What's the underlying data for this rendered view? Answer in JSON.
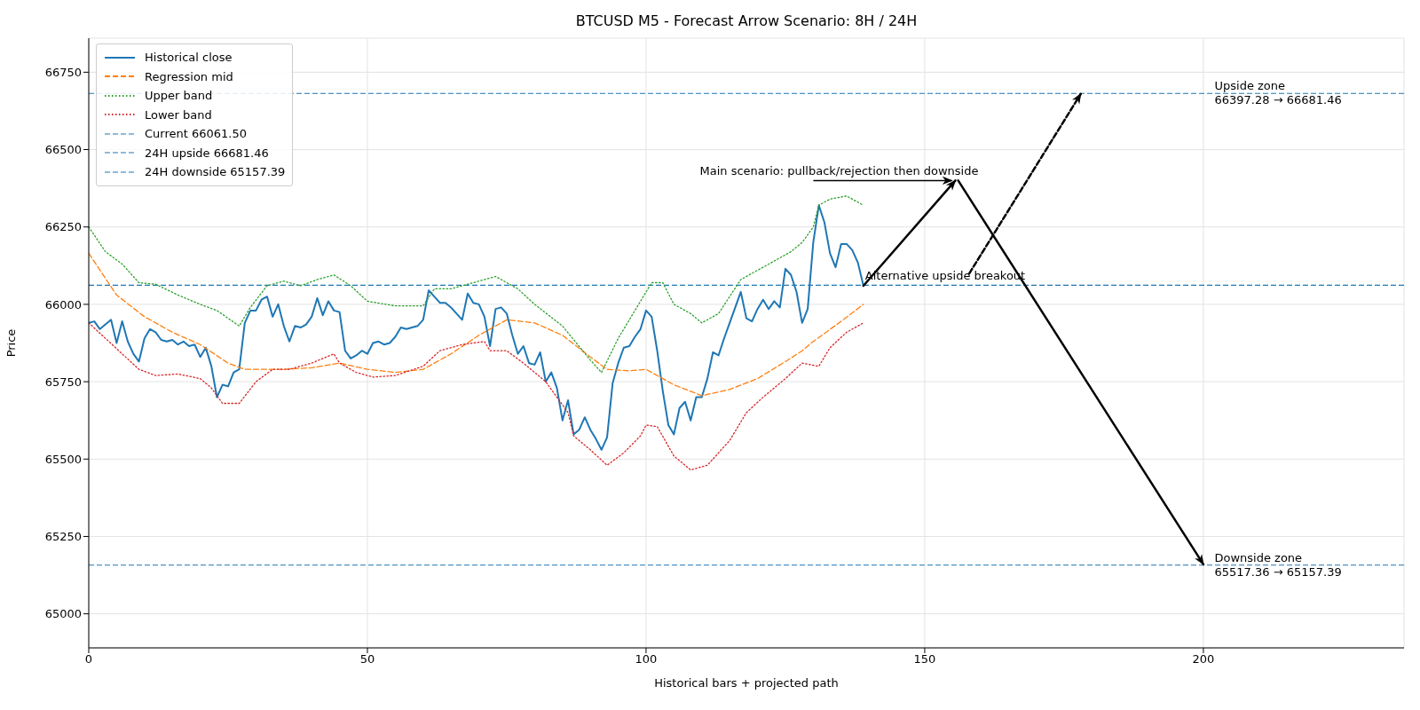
{
  "chart_data": {
    "type": "line",
    "title": "BTCUSD M5 - Forecast Arrow Scenario: 8H / 24H",
    "xlabel": "Historical bars + projected path",
    "ylabel": "Price",
    "x": [
      0,
      1,
      2,
      3,
      4,
      5,
      6,
      7,
      8,
      9,
      10,
      11,
      12,
      13,
      14,
      15,
      16,
      17,
      18,
      19,
      20,
      21,
      22,
      23,
      24,
      25,
      26,
      27,
      28,
      29,
      30,
      31,
      32,
      33,
      34,
      35,
      36,
      37,
      38,
      39,
      40,
      41,
      42,
      43,
      44,
      45,
      46,
      47,
      48,
      49,
      50,
      51,
      52,
      53,
      54,
      55,
      56,
      57,
      58,
      59,
      60,
      61,
      62,
      63,
      64,
      65,
      66,
      67,
      68,
      69,
      70,
      71,
      72,
      73,
      74,
      75,
      76,
      77,
      78,
      79,
      80,
      81,
      82,
      83,
      84,
      85,
      86,
      87,
      88,
      89,
      90,
      91,
      92,
      93,
      94,
      95,
      96,
      97,
      98,
      99,
      100,
      101,
      102,
      103,
      104,
      105,
      106,
      107,
      108,
      109,
      110,
      111,
      112,
      113,
      114,
      115,
      116,
      117,
      118,
      119,
      120,
      121,
      122,
      123,
      124,
      125,
      126,
      127,
      128,
      129,
      130,
      131,
      132,
      133,
      134,
      135,
      136,
      137,
      138,
      139
    ],
    "series": [
      {
        "name": "Historical close",
        "color": "#1f77b4",
        "line_style": "solid",
        "values": [
          65940,
          65945,
          65920,
          65935,
          65950,
          65875,
          65945,
          65880,
          65840,
          65815,
          65890,
          65920,
          65910,
          65885,
          65880,
          65885,
          65870,
          65880,
          65865,
          65870,
          65830,
          65860,
          65800,
          65700,
          65740,
          65735,
          65780,
          65790,
          65940,
          65980,
          65980,
          66015,
          66025,
          65960,
          66000,
          65930,
          65880,
          65930,
          65925,
          65935,
          65960,
          66020,
          65965,
          66010,
          65980,
          65975,
          65850,
          65825,
          65835,
          65850,
          65840,
          65875,
          65880,
          65870,
          65875,
          65895,
          65925,
          65920,
          65925,
          65930,
          65950,
          66045,
          66025,
          66005,
          66005,
          65990,
          65970,
          65950,
          66035,
          66005,
          66000,
          65960,
          65865,
          65985,
          65990,
          65970,
          65900,
          65840,
          65865,
          65810,
          65805,
          65845,
          65750,
          65780,
          65730,
          65625,
          65690,
          65580,
          65595,
          65635,
          65595,
          65565,
          65530,
          65570,
          65745,
          65810,
          65860,
          65865,
          65895,
          65920,
          65980,
          65960,
          65850,
          65720,
          65610,
          65580,
          65665,
          65685,
          65625,
          65700,
          65700,
          65760,
          65845,
          65835,
          65890,
          65940,
          65990,
          66040,
          65955,
          65945,
          65985,
          66015,
          65985,
          66010,
          65990,
          66115,
          66095,
          66040,
          65940,
          65985,
          66200,
          66320,
          66265,
          66165,
          66120,
          66195,
          66195,
          66175,
          66135,
          66060
        ]
      },
      {
        "name": "Regression mid",
        "color": "#ff7f0e",
        "line_style": "dashed",
        "x": [
          0,
          5,
          10,
          15,
          20,
          25,
          28,
          35,
          40,
          45,
          50,
          55,
          60,
          65,
          70,
          75,
          80,
          85,
          90,
          93,
          97,
          100,
          105,
          110,
          115,
          120,
          125,
          128,
          130,
          135,
          139
        ],
        "values": [
          66165,
          66030,
          65960,
          65910,
          65870,
          65810,
          65790,
          65790,
          65795,
          65810,
          65790,
          65780,
          65790,
          65840,
          65900,
          65950,
          65940,
          65900,
          65830,
          65790,
          65785,
          65790,
          65740,
          65705,
          65725,
          65760,
          65815,
          65850,
          65880,
          65945,
          66000
        ]
      },
      {
        "name": "Upper band",
        "color": "#2ca02c",
        "line_style": "dotted",
        "x": [
          0,
          3,
          6,
          9,
          12,
          16,
          20,
          23,
          27,
          29,
          32,
          35,
          38,
          41,
          44,
          47,
          50,
          55,
          60,
          62,
          65,
          70,
          73,
          77,
          80,
          85,
          90,
          92,
          95,
          98,
          101,
          103,
          105,
          108,
          110,
          113,
          117,
          120,
          123,
          126,
          128,
          130,
          131,
          133,
          136,
          139
        ],
        "values": [
          66250,
          66170,
          66130,
          66070,
          66065,
          66030,
          66000,
          65980,
          65930,
          65990,
          66060,
          66075,
          66060,
          66080,
          66095,
          66060,
          66010,
          65995,
          65995,
          66050,
          66050,
          66075,
          66090,
          66050,
          66000,
          65930,
          65820,
          65780,
          65890,
          65980,
          66070,
          66070,
          66000,
          65970,
          65940,
          65970,
          66080,
          66110,
          66140,
          66170,
          66200,
          66250,
          66320,
          66340,
          66350,
          66320
        ]
      },
      {
        "name": "Lower band",
        "color": "#d62728",
        "line_style": "dotted",
        "x": [
          0,
          3,
          6,
          9,
          12,
          16,
          20,
          22,
          24,
          27,
          30,
          33,
          36,
          40,
          44,
          45,
          48,
          51,
          55,
          60,
          63,
          67,
          71,
          72,
          75,
          78,
          82,
          86,
          87,
          90,
          93,
          96,
          99,
          100,
          102,
          105,
          108,
          111,
          115,
          118,
          121,
          125,
          128,
          131,
          133,
          136,
          139
        ],
        "values": [
          65940,
          65890,
          65840,
          65790,
          65770,
          65775,
          65760,
          65730,
          65680,
          65680,
          65750,
          65790,
          65790,
          65810,
          65840,
          65810,
          65780,
          65765,
          65770,
          65800,
          65850,
          65870,
          65880,
          65850,
          65850,
          65810,
          65750,
          65650,
          65575,
          65530,
          65480,
          65520,
          65575,
          65610,
          65605,
          65510,
          65465,
          65480,
          65560,
          65650,
          65700,
          65760,
          65810,
          65800,
          65860,
          65910,
          65940
        ]
      },
      {
        "color": "#000000",
        "line_style": "solid",
        "x": [
          139,
          155.5
        ],
        "values": [
          66060,
          66400
        ]
      },
      {
        "color": "#000000",
        "line_style": "solid",
        "x": [
          156,
          200
        ],
        "values": [
          66400,
          65160
        ]
      },
      {
        "color": "#000000",
        "line_style": "dashed",
        "x": [
          158,
          178
        ],
        "values": [
          66100,
          66680
        ]
      }
    ],
    "ref_lines": [
      {
        "axis": "y",
        "value": 66061.5,
        "label": "Current 66061.50",
        "color": "#1f77b4",
        "line_style": "dashed"
      },
      {
        "axis": "y",
        "value": 66681.46,
        "label": "24H upside 66681.46",
        "color": "#1f77b4",
        "line_style": "dashed"
      },
      {
        "axis": "y",
        "value": 65157.39,
        "label": "24H downside 65157.39",
        "color": "#1f77b4",
        "line_style": "dashed"
      }
    ],
    "annotations": [
      {
        "text": "Main scenario: pullback/rejection then downside",
        "x": 155.5,
        "y": 66400
      },
      {
        "text": "Alternative upside breakout",
        "x": 139,
        "y": 66061.5
      },
      {
        "text": "Upside zone\n66397.28 → 66681.46",
        "x": 202,
        "y": 66681.46
      },
      {
        "text": "Downside zone\n65517.36 → 65157.39",
        "x": 202,
        "y": 65157.39
      }
    ],
    "xlim": [
      0,
      236
    ],
    "xticks": [
      0,
      50,
      100,
      150,
      200
    ],
    "ylim": [
      64890,
      66860
    ],
    "yticks": [
      65000,
      65250,
      65500,
      65750,
      66000,
      66250,
      66500,
      66750
    ],
    "grid": true,
    "legend": "top left",
    "marker": "none"
  }
}
